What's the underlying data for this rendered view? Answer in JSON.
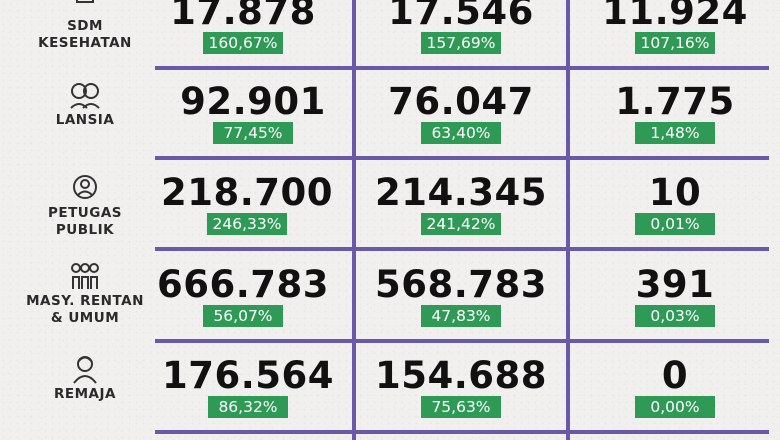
{
  "rows": [
    {
      "label": "SDM\nKESEHATAN",
      "icon": "health-worker-icon",
      "values": [
        "17.878",
        "17.546",
        "11.924"
      ],
      "pcts": [
        "160,67%",
        "157,69%",
        "107,16%"
      ]
    },
    {
      "label": "LANSIA",
      "icon": "elderly-icon",
      "values": [
        "92.901",
        "76.047",
        "1.775"
      ],
      "pcts": [
        "77,45%",
        "63,40%",
        "1,48%"
      ]
    },
    {
      "label": "PETUGAS\nPUBLIK",
      "icon": "public-officer-icon",
      "values": [
        "218.700",
        "214.345",
        "10"
      ],
      "pcts": [
        "246,33%",
        "241,42%",
        "0,01%"
      ]
    },
    {
      "label": "MASY. RENTAN\n& UMUM",
      "icon": "community-icon",
      "values": [
        "666.783",
        "568.783",
        "391"
      ],
      "pcts": [
        "56,07%",
        "47,83%",
        "0,03%"
      ]
    },
    {
      "label": "REMAJA",
      "icon": "teenager-icon",
      "values": [
        "176.564",
        "154.688",
        "0"
      ],
      "pcts": [
        "86,32%",
        "75,63%",
        "0,00%"
      ]
    }
  ],
  "colors": {
    "divider": "#6a58a8",
    "badge": "#2e9a56",
    "text": "#111111"
  }
}
